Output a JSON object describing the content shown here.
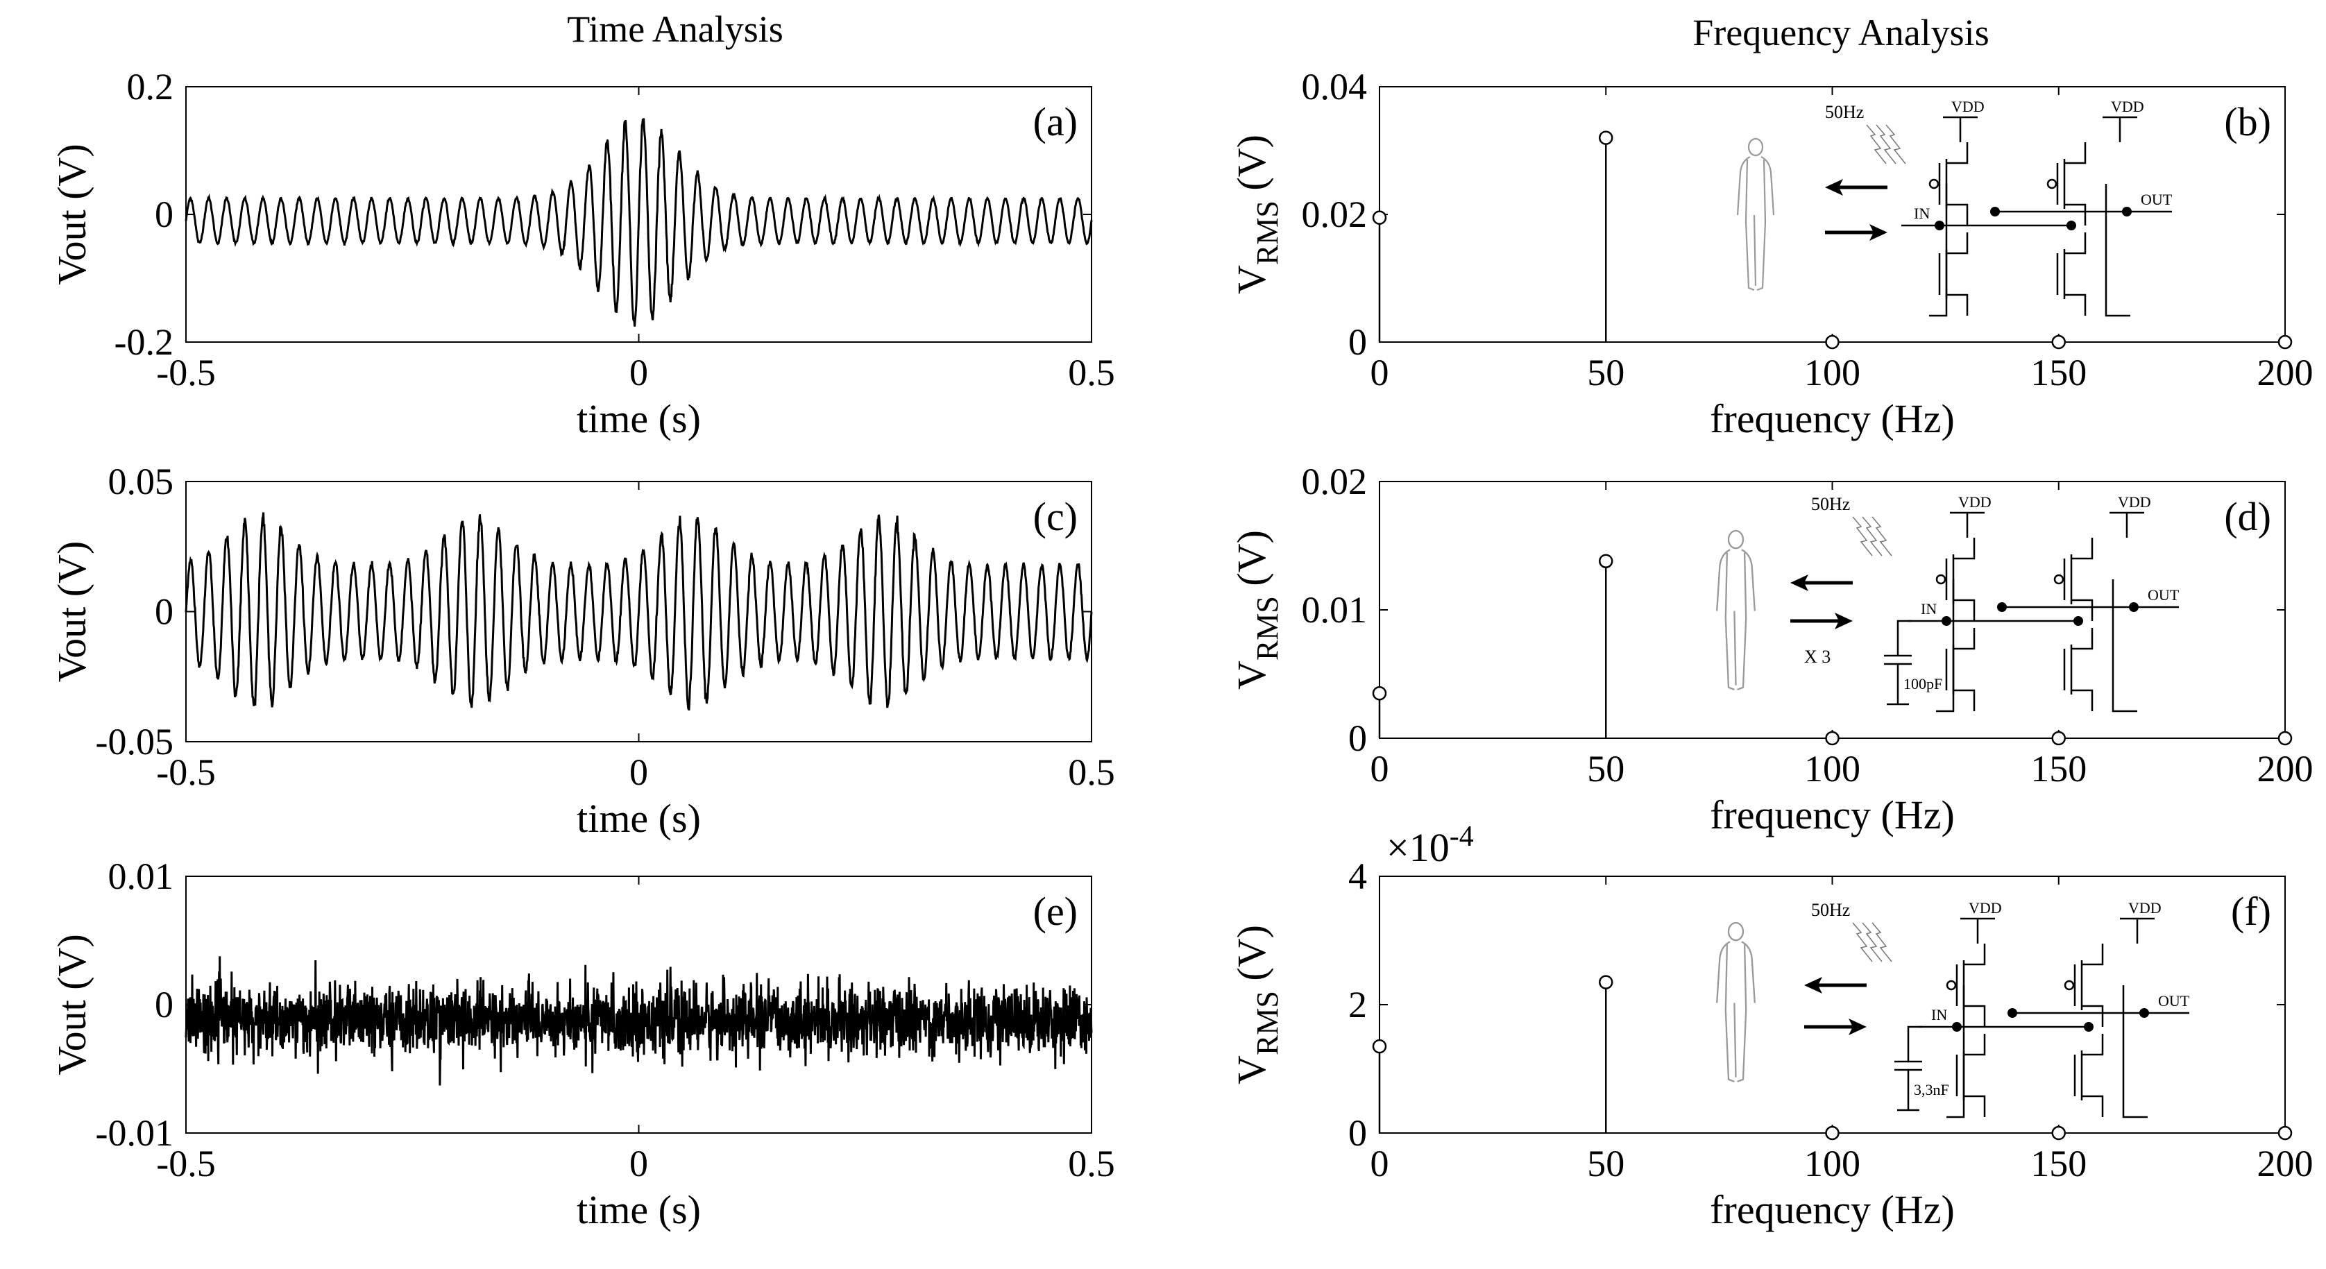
{
  "titles": {
    "left": "Time Analysis",
    "right": "Frequency Analysis"
  },
  "chart_data": [
    {
      "id": "a",
      "type": "line",
      "label": "(a)",
      "xlabel": "time (s)",
      "ylabel": "Vout  (V)",
      "xlim": [
        -0.5,
        0.5
      ],
      "ylim": [
        -0.2,
        0.2
      ],
      "xticks": [
        "-0.5",
        "0",
        "0.5"
      ],
      "yticks": [
        "0.2",
        "0",
        "-0.2"
      ],
      "signal": {
        "carrier_hz": 50,
        "offset": -0.01,
        "base_amplitude": 0.035,
        "peak_amplitude": 0.16,
        "peak_time": 0.0,
        "peak_width_s": 0.06
      }
    },
    {
      "id": "b",
      "type": "stem",
      "label": "(b)",
      "xlabel": "frequency (Hz)",
      "ylabel": "V",
      "ylabel_sub": "RMS",
      "ylabel_unit": " (V)",
      "xlim": [
        0,
        200
      ],
      "ylim": [
        0,
        0.04
      ],
      "xticks": [
        "0",
        "50",
        "100",
        "150",
        "200"
      ],
      "yticks": [
        "0.04",
        "0.02",
        "0"
      ],
      "x": [
        0,
        50,
        100,
        150,
        200
      ],
      "values": [
        0.0195,
        0.032,
        0,
        0,
        0
      ]
    },
    {
      "id": "c",
      "type": "line",
      "label": "(c)",
      "xlabel": "time (s)",
      "ylabel": "Vout  (V)",
      "xlim": [
        -0.5,
        0.5
      ],
      "ylim": [
        -0.05,
        0.05
      ],
      "xticks": [
        "-0.5",
        "0",
        "0.5"
      ],
      "yticks": [
        "0.05",
        "0",
        "-0.05"
      ],
      "signal": {
        "carrier_hz": 50,
        "offset": 0.0,
        "base_amplitude": 0.018,
        "peak_amplitude": 0.036,
        "peak_times": [
          -0.42,
          -0.18,
          0.06,
          0.27
        ],
        "peak_width_s": 0.05
      }
    },
    {
      "id": "d",
      "type": "stem",
      "label": "(d)",
      "xlabel": "frequency (Hz)",
      "ylabel": "V",
      "ylabel_sub": "RMS",
      "ylabel_unit": " (V)",
      "xlim": [
        0,
        200
      ],
      "ylim": [
        0,
        0.02
      ],
      "xticks": [
        "0",
        "50",
        "100",
        "150",
        "200"
      ],
      "yticks": [
        "0.02",
        "0.01",
        "0"
      ],
      "x": [
        0,
        50,
        100,
        150,
        200
      ],
      "values": [
        0.0035,
        0.0138,
        0,
        0,
        0
      ]
    },
    {
      "id": "e",
      "type": "line",
      "label": "(e)",
      "xlabel": "time (s)",
      "ylabel": "Vout  (V)",
      "xlim": [
        -0.5,
        0.5
      ],
      "ylim": [
        -0.01,
        0.01
      ],
      "xticks": [
        "-0.5",
        "0",
        "0.5"
      ],
      "yticks": [
        "0.01",
        "0",
        "-0.01"
      ],
      "signal": {
        "noise_offset": -0.0012,
        "noise_sigma": 0.0013
      }
    },
    {
      "id": "f",
      "type": "stem",
      "label": "(f)",
      "xlabel": "frequency (Hz)",
      "ylabel": "V",
      "ylabel_sub": "RMS",
      "ylabel_unit": " (V)",
      "xlim": [
        0,
        200
      ],
      "ylim": [
        0,
        4
      ],
      "multiplier_base": "×10",
      "multiplier_exp": "-4",
      "xticks": [
        "0",
        "50",
        "100",
        "150",
        "200"
      ],
      "yticks": [
        "4",
        "2",
        "0"
      ],
      "x": [
        0,
        50,
        100,
        150,
        200
      ],
      "values": [
        1.35,
        2.35,
        0,
        0,
        0
      ]
    }
  ],
  "insets": {
    "b": {
      "freq": "50Hz",
      "vdd": "VDD",
      "in": "IN",
      "out": "OUT"
    },
    "d": {
      "freq": "50Hz",
      "vdd": "VDD",
      "in": "IN",
      "out": "OUT",
      "gain": "X 3",
      "cap": "100pF"
    },
    "f": {
      "freq": "50Hz",
      "vdd": "VDD",
      "in": "IN",
      "out": "OUT",
      "cap": "3,3nF"
    }
  }
}
